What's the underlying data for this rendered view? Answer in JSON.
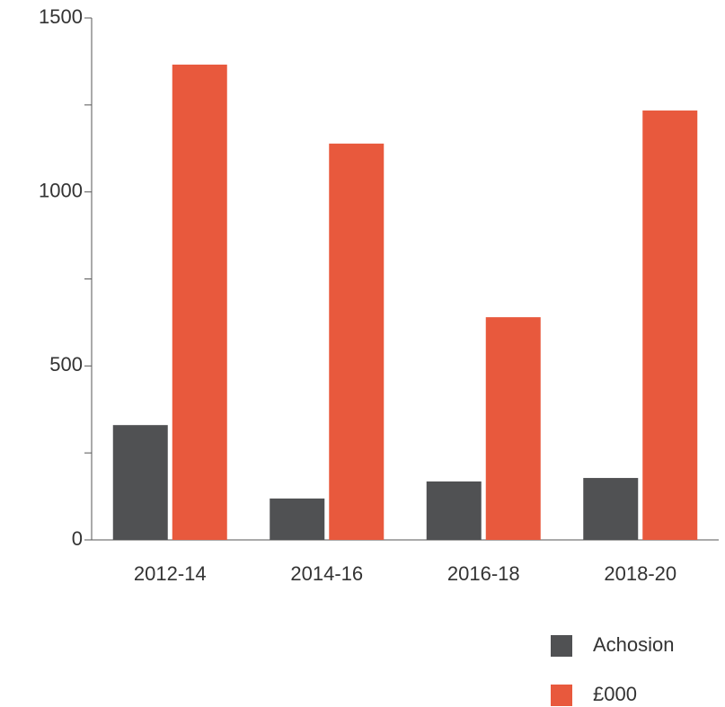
{
  "chart_data": {
    "type": "bar",
    "categories": [
      "2012-14",
      "2014-16",
      "2016-18",
      "2018-20"
    ],
    "series": [
      {
        "name": "Achosion",
        "color": "#505153",
        "values": [
          330,
          119,
          168,
          178
        ]
      },
      {
        "name": "£000",
        "color": "#e8593d",
        "values": [
          1366,
          1139,
          640,
          1234
        ]
      }
    ],
    "ylim": [
      0,
      1500
    ],
    "yticks": [
      0,
      500,
      1000,
      1500
    ],
    "minor_yticks": [
      250,
      750,
      1250
    ],
    "legend": "bottom-right"
  }
}
